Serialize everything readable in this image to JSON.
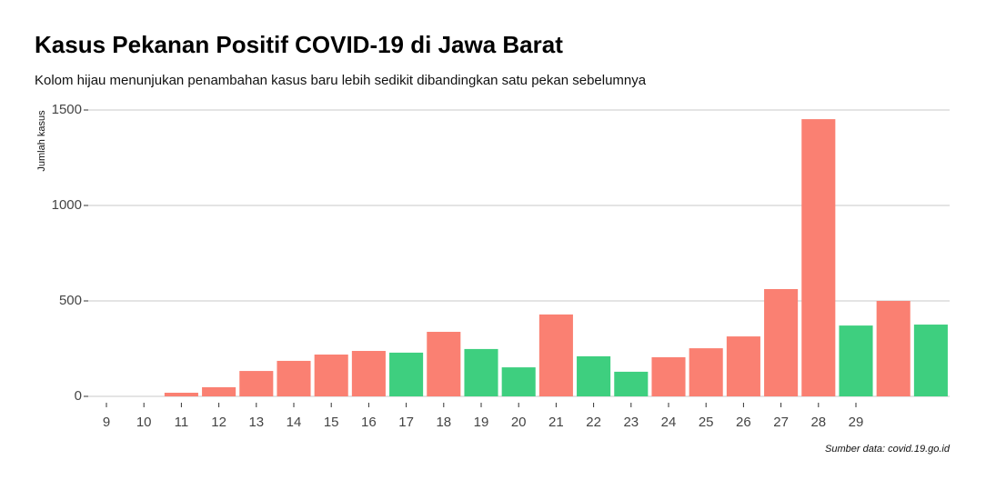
{
  "chart_data": {
    "type": "bar",
    "title": "Kasus Pekanan Positif COVID-19 di Jawa Barat",
    "subtitle": "Kolom hijau menunjukan penambahan kasus baru lebih sedikit dibandingkan satu pekan sebelumnya",
    "y_label": "Jumlah kasus",
    "source": "Sumber data: covid.19.go.id",
    "categories": [
      "9",
      "10",
      "11",
      "12",
      "13",
      "14",
      "15",
      "16",
      "17",
      "18",
      "19",
      "20",
      "21",
      "22",
      "23",
      "24",
      "25",
      "26",
      "27",
      "28",
      "29",
      null,
      null
    ],
    "values": [
      0,
      0,
      19,
      48,
      133,
      186,
      219,
      238,
      229,
      338,
      248,
      152,
      429,
      210,
      129,
      205,
      252,
      314,
      562,
      1452,
      371,
      500,
      376
    ],
    "colors": [
      "#fa8072",
      "#fa8072",
      "#fa8072",
      "#fa8072",
      "#fa8072",
      "#fa8072",
      "#fa8072",
      "#fa8072",
      "#3ecf7f",
      "#fa8072",
      "#3ecf7f",
      "#3ecf7f",
      "#fa8072",
      "#3ecf7f",
      "#3ecf7f",
      "#fa8072",
      "#fa8072",
      "#fa8072",
      "#fa8072",
      "#fa8072",
      "#3ecf7f",
      "#fa8072",
      "#3ecf7f"
    ],
    "ylim": [
      0,
      1500
    ],
    "yticks": [
      0,
      500,
      1000,
      1500
    ],
    "grid": true
  }
}
